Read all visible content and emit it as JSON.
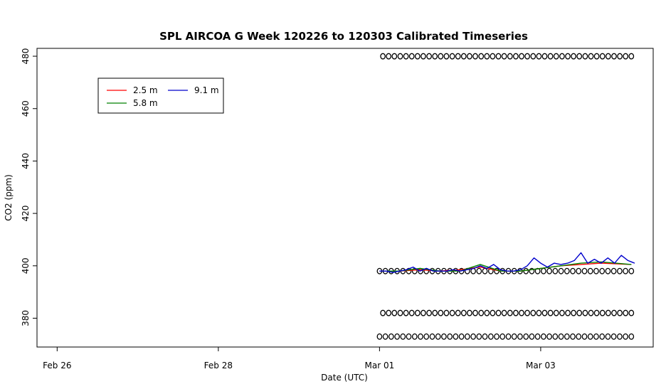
{
  "chart_data": {
    "type": "line",
    "title": "SPL AIRCOA G  Week 120226 to 120303  Calibrated Timeseries",
    "xlabel": "Date (UTC)",
    "ylabel": "CO2 (ppm)",
    "x_ticks": [
      "Feb 26",
      "Feb 28",
      "Mar 01",
      "Mar 03"
    ],
    "y_ticks": [
      380,
      400,
      420,
      440,
      460,
      480
    ],
    "xlim": [
      "Feb 25 18:00",
      "Mar 04 09:30"
    ],
    "ylim": [
      369,
      483
    ],
    "legend": {
      "position": "top-left",
      "entries": [
        {
          "label": "2.5 m",
          "color": "#ff0000"
        },
        {
          "label": "5.8 m",
          "color": "#008000"
        },
        {
          "label": "9.1 m",
          "color": "#0000cc"
        }
      ]
    },
    "series": [
      {
        "name": "2.5 m",
        "color": "#ff0000",
        "x": [
          "Mar 01 00:00",
          "Mar 01 06:00",
          "Mar 01 12:00",
          "Mar 01 18:00",
          "Mar 02 00:00",
          "Mar 02 06:00",
          "Mar 02 12:00",
          "Mar 02 18:00",
          "Mar 03 00:00",
          "Mar 03 06:00",
          "Mar 03 12:00",
          "Mar 03 18:00",
          "Mar 04 03:00"
        ],
        "values": [
          398,
          398,
          398.5,
          398,
          398.5,
          399.5,
          398,
          398,
          399,
          400,
          400.5,
          401,
          400.5
        ]
      },
      {
        "name": "5.8 m",
        "color": "#008000",
        "x": [
          "Mar 01 00:00",
          "Mar 01 06:00",
          "Mar 01 12:00",
          "Mar 01 18:00",
          "Mar 02 00:00",
          "Mar 02 06:00",
          "Mar 02 12:00",
          "Mar 02 18:00",
          "Mar 03 00:00",
          "Mar 03 06:00",
          "Mar 03 12:00",
          "Mar 03 18:00",
          "Mar 04 03:00"
        ],
        "values": [
          398,
          398,
          399,
          398,
          398,
          400.5,
          398,
          398,
          399,
          400,
          401,
          401.5,
          400.5
        ]
      },
      {
        "name": "9.1 m",
        "color": "#0000cc",
        "x": [
          "Mar 01 00:00",
          "Mar 01 02:00",
          "Mar 01 04:00",
          "Mar 01 06:00",
          "Mar 01 08:00",
          "Mar 01 10:00",
          "Mar 01 12:00",
          "Mar 01 14:00",
          "Mar 01 16:00",
          "Mar 01 18:00",
          "Mar 01 20:00",
          "Mar 01 22:00",
          "Mar 02 00:00",
          "Mar 02 02:00",
          "Mar 02 04:00",
          "Mar 02 06:00",
          "Mar 02 08:00",
          "Mar 02 10:00",
          "Mar 02 12:00",
          "Mar 02 14:00",
          "Mar 02 16:00",
          "Mar 02 18:00",
          "Mar 02 20:00",
          "Mar 02 22:00",
          "Mar 03 00:00",
          "Mar 03 02:00",
          "Mar 03 04:00",
          "Mar 03 06:00",
          "Mar 03 08:00",
          "Mar 03 10:00",
          "Mar 03 12:00",
          "Mar 03 14:00",
          "Mar 03 16:00",
          "Mar 03 18:00",
          "Mar 03 20:00",
          "Mar 03 22:00",
          "Mar 04 00:00",
          "Mar 04 02:00",
          "Mar 04 04:00"
        ],
        "values": [
          398,
          398,
          397.5,
          398,
          398.5,
          399.5,
          398,
          399,
          398,
          398,
          398,
          398.5,
          398,
          398.5,
          399,
          400,
          399,
          400.5,
          398.5,
          398,
          398,
          398.5,
          400,
          403,
          401,
          399.5,
          401,
          400.5,
          401,
          402,
          405,
          401,
          402.5,
          401,
          403,
          401,
          404,
          402,
          401
        ]
      }
    ],
    "marker_rows": [
      {
        "y": 480,
        "x_start": "Mar 01 01:00",
        "x_end": "Mar 04 03:00"
      },
      {
        "y": 398,
        "x_start": "Mar 01 00:00",
        "x_end": "Mar 04 03:00"
      },
      {
        "y": 382,
        "x_start": "Mar 01 01:00",
        "x_end": "Mar 04 03:00"
      },
      {
        "y": 373,
        "x_start": "Mar 01 00:00",
        "x_end": "Mar 04 03:00"
      }
    ]
  }
}
